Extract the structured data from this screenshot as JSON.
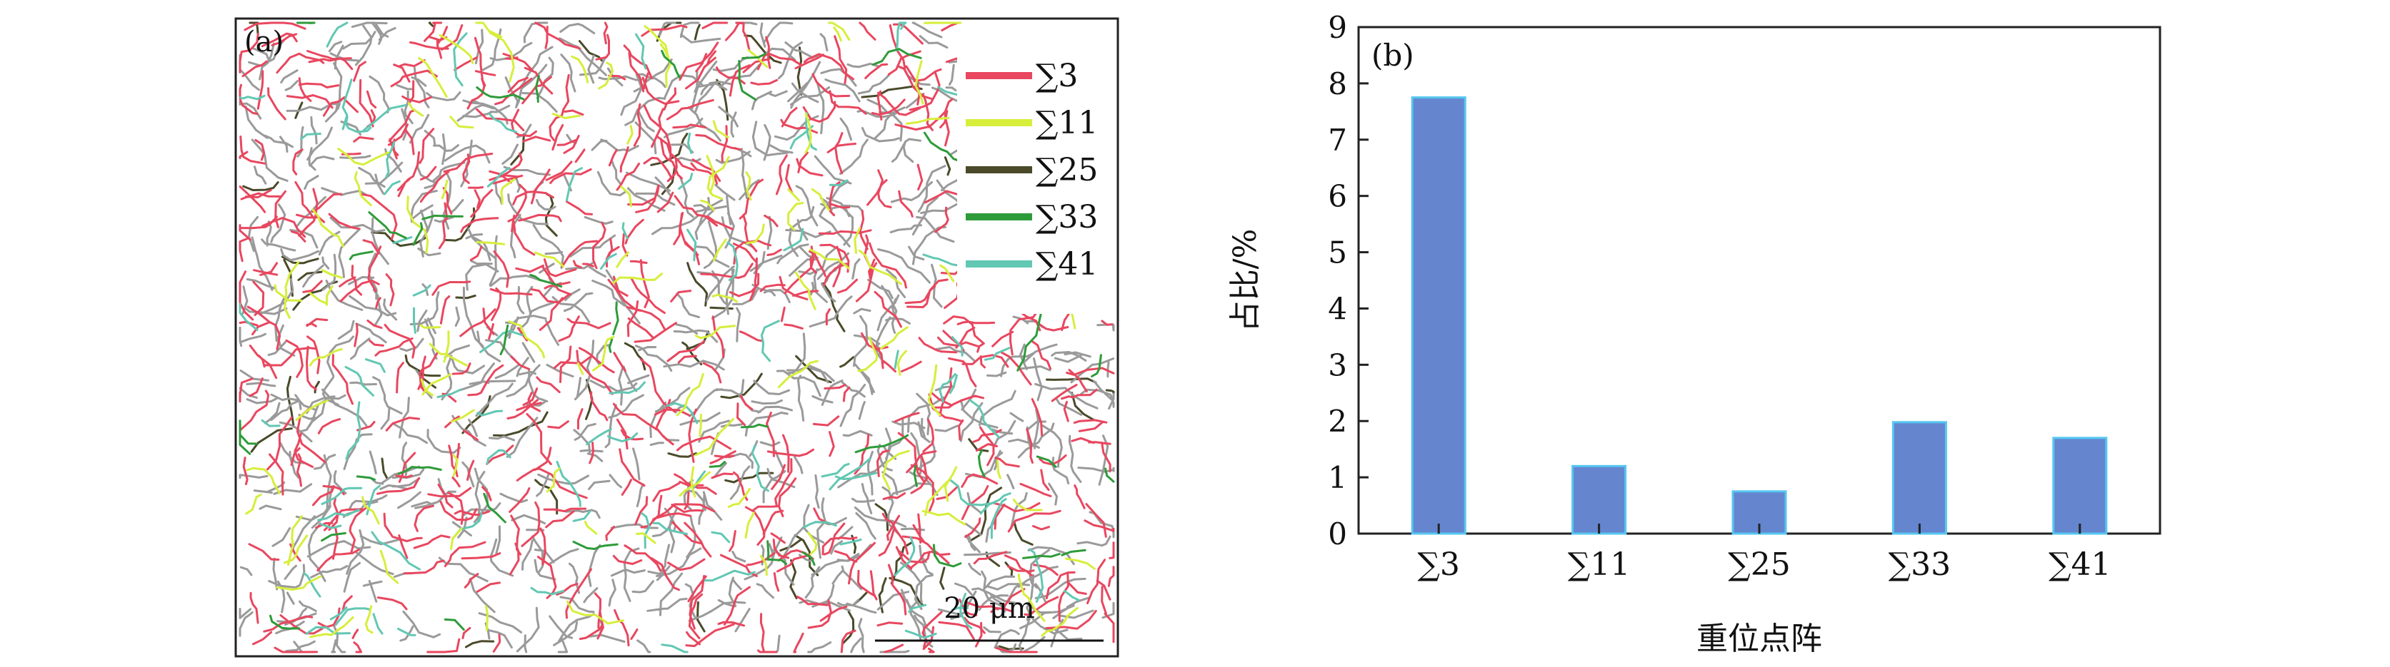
{
  "panel_a": {
    "label": "(a)",
    "scale_bar": "20 μm",
    "legend": [
      {
        "label": "∑3",
        "color": "#e8475f"
      },
      {
        "label": "∑11",
        "color": "#d7ee3b"
      },
      {
        "label": "∑25",
        "color": "#4a4a2a"
      },
      {
        "label": "∑33",
        "color": "#2e9b3a"
      },
      {
        "label": "∑41",
        "color": "#62c7b3"
      }
    ],
    "boundary_colors": {
      "other": "#9a9a9a"
    }
  },
  "chart_data": {
    "type": "bar",
    "panel_label": "(b)",
    "categories": [
      "∑3",
      "∑11",
      "∑25",
      "∑33",
      "∑41"
    ],
    "values": [
      7.75,
      1.2,
      0.75,
      1.98,
      1.7
    ],
    "xlabel": "重位点阵",
    "ylabel": "占比/%",
    "ylim": [
      0,
      9
    ],
    "yticks": [
      "0",
      "1",
      "2",
      "3",
      "4",
      "5",
      "6",
      "7",
      "8",
      "9"
    ],
    "bar_color": "#6585cf",
    "bar_edge_color": "#55c6f0",
    "grid": false
  }
}
